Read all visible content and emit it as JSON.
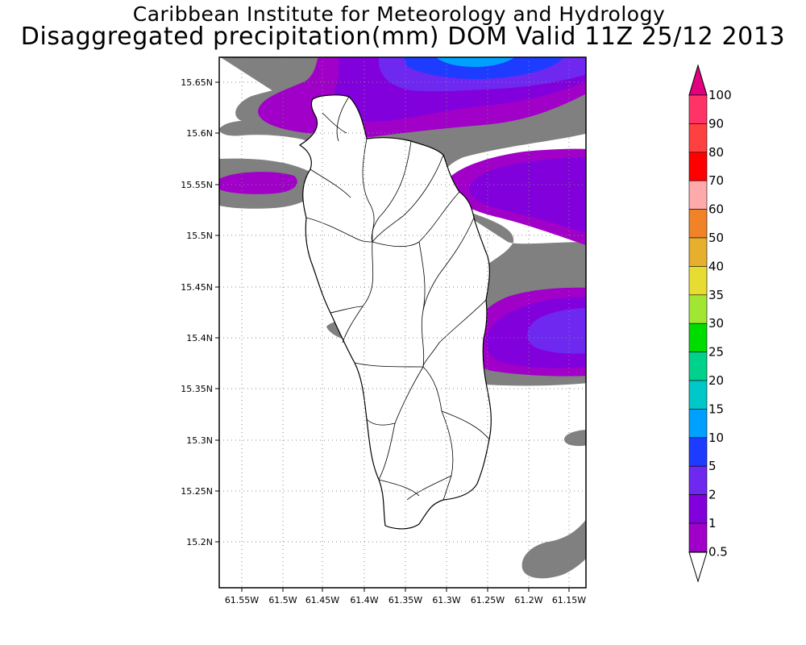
{
  "header": {
    "line1": "Caribbean Institute for Meteorology and Hydrology",
    "line2": "Disaggregated precipitation(mm) DOM Valid 11Z 25/12 2013"
  },
  "map": {
    "lon_ticks": [
      "61.55W",
      "61.5W",
      "61.45W",
      "61.4W",
      "61.35W",
      "61.3W",
      "61.25W",
      "61.2W",
      "61.15W"
    ],
    "lat_ticks": [
      "15.65N",
      "15.6N",
      "15.55N",
      "15.5N",
      "15.45N",
      "15.4N",
      "15.35N",
      "15.3N",
      "15.25N",
      "15.2N"
    ],
    "grid": true,
    "fields": [
      {
        "name": "0.5-1",
        "color": "#808080"
      },
      {
        "name": "1-2",
        "color": "#a000c8"
      },
      {
        "name": "2-5",
        "color": "#8200dc"
      },
      {
        "name": "5-10",
        "color": "#6e28f0"
      },
      {
        "name": "10-15",
        "color": "#1e3cff"
      },
      {
        "name": "15-20",
        "color": "#00a0ff"
      }
    ]
  },
  "colorbar": {
    "levels": [
      {
        "label": "100",
        "color": "#ff3366"
      },
      {
        "label": "90",
        "color": "#ff4040"
      },
      {
        "label": "80",
        "color": "#ff0000"
      },
      {
        "label": "70",
        "color": "#ffaaaa"
      },
      {
        "label": "60",
        "color": "#f08228"
      },
      {
        "label": "50",
        "color": "#e6af2d"
      },
      {
        "label": "40",
        "color": "#e6dc32"
      },
      {
        "label": "35",
        "color": "#a0e632"
      },
      {
        "label": "30",
        "color": "#00dc00"
      },
      {
        "label": "25",
        "color": "#00d28c"
      },
      {
        "label": "20",
        "color": "#00c8c8"
      },
      {
        "label": "15",
        "color": "#00a0ff"
      },
      {
        "label": "10",
        "color": "#1e3cff"
      },
      {
        "label": "5",
        "color": "#6e28f0"
      },
      {
        "label": "2",
        "color": "#8200dc"
      },
      {
        "label": "1",
        "color": "#a000c8"
      },
      {
        "label": "0.5",
        "color": "#808080"
      }
    ],
    "top_arrow_color": "#e1007d",
    "bottom_arrow_color": "#ffffff"
  }
}
